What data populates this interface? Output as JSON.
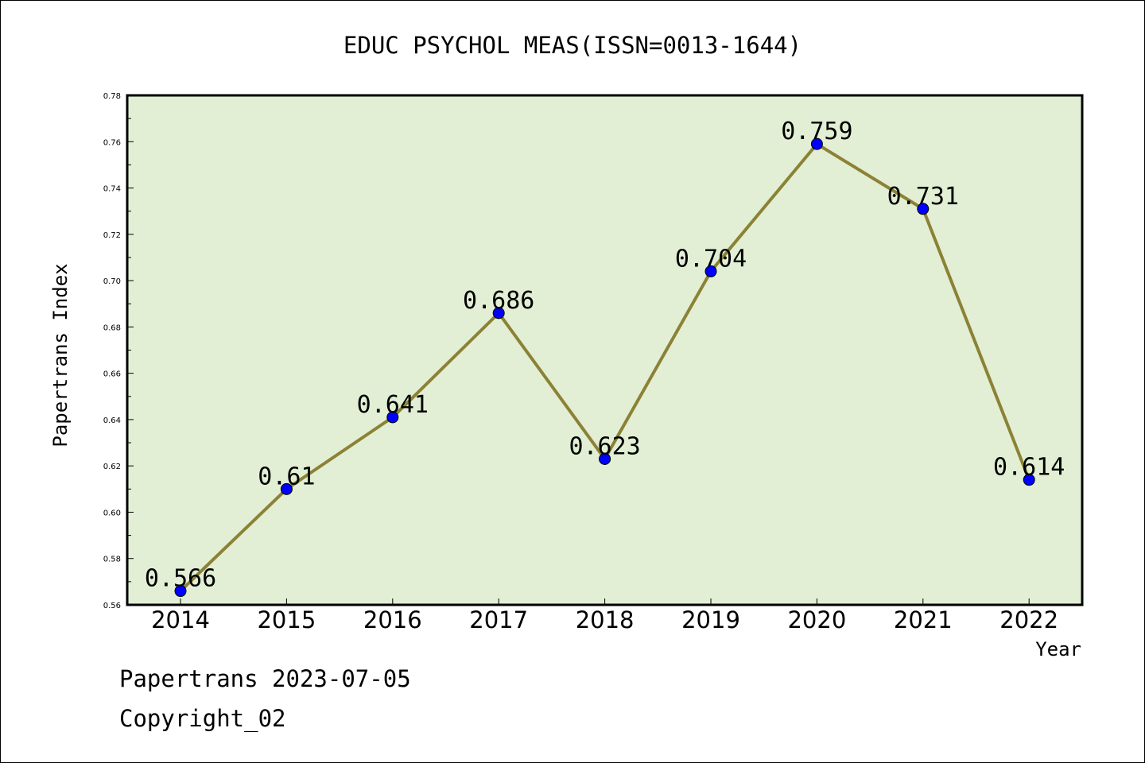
{
  "chart_data": {
    "type": "line",
    "title": "EDUC PSYCHOL MEAS(ISSN=0013-1644)",
    "xlabel": "Year",
    "ylabel": "Papertrans Index",
    "categories": [
      "2014",
      "2015",
      "2016",
      "2017",
      "2018",
      "2019",
      "2020",
      "2021",
      "2022"
    ],
    "values": [
      0.566,
      0.61,
      0.641,
      0.686,
      0.623,
      0.704,
      0.759,
      0.731,
      0.614
    ],
    "data_labels": [
      "0.566",
      "0.61",
      "0.641",
      "0.686",
      "0.623",
      "0.704",
      "0.759",
      "0.731",
      "0.614"
    ],
    "ylim": [
      0.56,
      0.78
    ],
    "yticks": [
      "0.56",
      "0.58",
      "0.60",
      "0.62",
      "0.64",
      "0.66",
      "0.68",
      "0.70",
      "0.72",
      "0.74",
      "0.76",
      "0.78"
    ],
    "grid": false,
    "colors": {
      "plot_background": "#e2efd5",
      "line": "#8b8235",
      "marker": "#0000ff",
      "frame": "#000000"
    }
  },
  "footer": {
    "line1": "Papertrans 2023-07-05",
    "line2": "Copyright_02"
  }
}
